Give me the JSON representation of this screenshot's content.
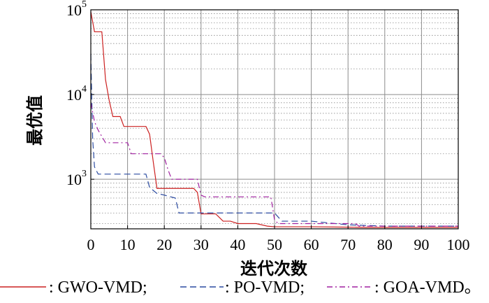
{
  "chart_data": {
    "type": "line",
    "title": "",
    "xlabel": "迭代次数",
    "ylabel": "最优值",
    "xlim": [
      0,
      100
    ],
    "ylim": [
      260,
      100000
    ],
    "yscale": "log",
    "grid": true,
    "legend_position": "bottom",
    "x_ticks": [
      "0",
      "10",
      "20",
      "30",
      "40",
      "50",
      "60",
      "70",
      "80",
      "90",
      "100"
    ],
    "y_ticks": [
      {
        "value": 1000,
        "base": "10",
        "exp": "3"
      },
      {
        "value": 10000,
        "base": "10",
        "exp": "4"
      },
      {
        "value": 100000,
        "base": "10",
        "exp": "5"
      }
    ],
    "legend_end": "。",
    "series": [
      {
        "name": ": GWO-VMD;",
        "color": "#cc2020",
        "style": "solid",
        "x": [
          0,
          1,
          3,
          4,
          5,
          6,
          8,
          9,
          15,
          16,
          17,
          18,
          28,
          29,
          30,
          34,
          36,
          38,
          40,
          45,
          48,
          50,
          60,
          70,
          75,
          100
        ],
        "y": [
          95000,
          55000,
          55000,
          15000,
          8500,
          5500,
          5500,
          4200,
          4200,
          3400,
          1600,
          780,
          780,
          700,
          390,
          390,
          320,
          320,
          300,
          300,
          280,
          275,
          275,
          272,
          270,
          270
        ]
      },
      {
        "name": ": PO-VMD;",
        "color": "#2a4aa0",
        "style": "dashed",
        "x": [
          0,
          0.5,
          1,
          2,
          15,
          16,
          18,
          20,
          23,
          24,
          30,
          45,
          50,
          52,
          60,
          70,
          80,
          100
        ],
        "y": [
          30000,
          3000,
          1400,
          1150,
          1150,
          800,
          680,
          650,
          600,
          400,
          400,
          400,
          400,
          320,
          320,
          290,
          280,
          280
        ]
      },
      {
        "name": ": GOA-VMD",
        "color": "#a020a0",
        "style": "dashdot",
        "x": [
          0,
          1,
          2,
          3,
          4,
          10,
          11,
          19,
          20,
          21,
          22,
          29,
          30,
          31,
          49,
          50,
          51,
          72,
          73,
          100
        ],
        "y": [
          8000,
          4800,
          3800,
          3200,
          2700,
          2700,
          2000,
          2000,
          1800,
          1300,
          1000,
          1000,
          650,
          620,
          620,
          330,
          300,
          300,
          280,
          280
        ]
      }
    ]
  }
}
